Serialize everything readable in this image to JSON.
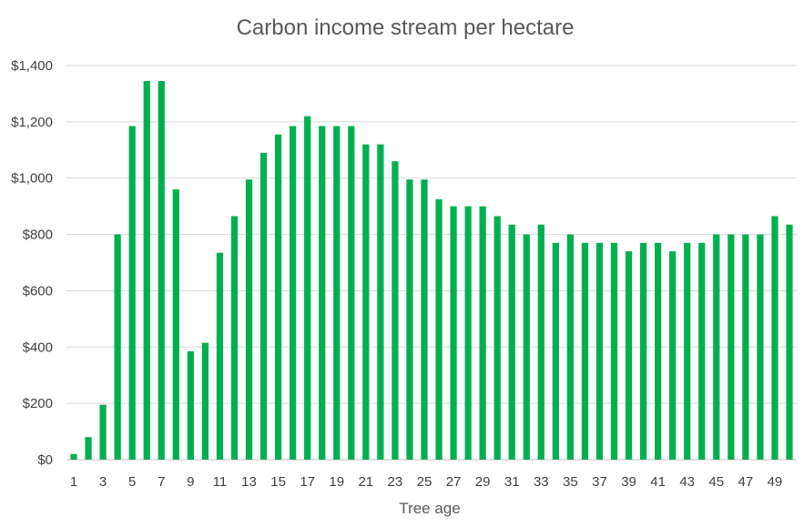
{
  "colors": {
    "bar": "#00b050",
    "grid": "#d9d9d9",
    "text": "#595959"
  },
  "chart_data": {
    "type": "bar",
    "title": "Carbon income stream per hectare",
    "xlabel": "Tree age",
    "ylabel": "",
    "ylim": [
      0,
      1400
    ],
    "yticks": [
      0,
      200,
      400,
      600,
      800,
      1000,
      1200,
      1400
    ],
    "ytick_labels": [
      "$0",
      "$200",
      "$400",
      "$600",
      "$800",
      "$1,000",
      "$1,200",
      "$1,400"
    ],
    "xtick_labels_shown": [
      "1",
      "3",
      "5",
      "7",
      "9",
      "11",
      "13",
      "15",
      "17",
      "19",
      "21",
      "23",
      "25",
      "27",
      "29",
      "31",
      "33",
      "35",
      "37",
      "39",
      "41",
      "43",
      "45",
      "47",
      "49"
    ],
    "grid": true,
    "legend": "none",
    "categories": [
      1,
      2,
      3,
      4,
      5,
      6,
      7,
      8,
      9,
      10,
      11,
      12,
      13,
      14,
      15,
      16,
      17,
      18,
      19,
      20,
      21,
      22,
      23,
      24,
      25,
      26,
      27,
      28,
      29,
      30,
      31,
      32,
      33,
      34,
      35,
      36,
      37,
      38,
      39,
      40,
      41,
      42,
      43,
      44,
      45,
      46,
      47,
      48,
      49,
      50
    ],
    "values": [
      20,
      80,
      195,
      800,
      1185,
      1345,
      1345,
      960,
      385,
      415,
      735,
      865,
      995,
      1090,
      1155,
      1185,
      1220,
      1185,
      1185,
      1185,
      1120,
      1120,
      1060,
      995,
      995,
      925,
      900,
      900,
      900,
      865,
      835,
      800,
      835,
      770,
      800,
      770,
      770,
      770,
      740,
      770,
      770,
      740,
      770,
      770,
      800,
      800,
      800,
      800,
      865,
      835
    ]
  }
}
